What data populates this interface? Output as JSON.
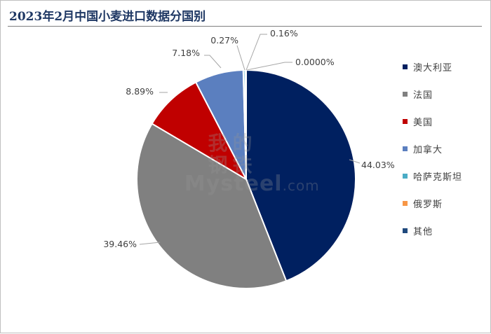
{
  "chart_data": {
    "type": "pie",
    "title": "2023年2月中国小麦进口数据分国别",
    "slices": [
      {
        "name": "澳大利亚",
        "value": 44.03,
        "label": "44.03%",
        "color": "#002060"
      },
      {
        "name": "法国",
        "value": 39.46,
        "label": "39.46%",
        "color": "#808080"
      },
      {
        "name": "美国",
        "value": 8.89,
        "label": "8.89%",
        "color": "#c00000"
      },
      {
        "name": "加拿大",
        "value": 7.18,
        "label": "7.18%",
        "color": "#5b7fbf"
      },
      {
        "name": "哈萨克斯坦",
        "value": 0.27,
        "label": "0.27%",
        "color": "#4bacc6"
      },
      {
        "name": "俄罗斯",
        "value": 0.16,
        "label": "0.16%",
        "color": "#f79646"
      },
      {
        "name": "其他",
        "value": 0.0,
        "label": "0.0000%",
        "color": "#1f497d"
      }
    ],
    "legend_position": "right"
  },
  "watermark": {
    "cn": [
      "我",
      "的",
      "钢",
      "铁"
    ],
    "en_main": "Mysteel",
    "en_suffix": ".com"
  }
}
